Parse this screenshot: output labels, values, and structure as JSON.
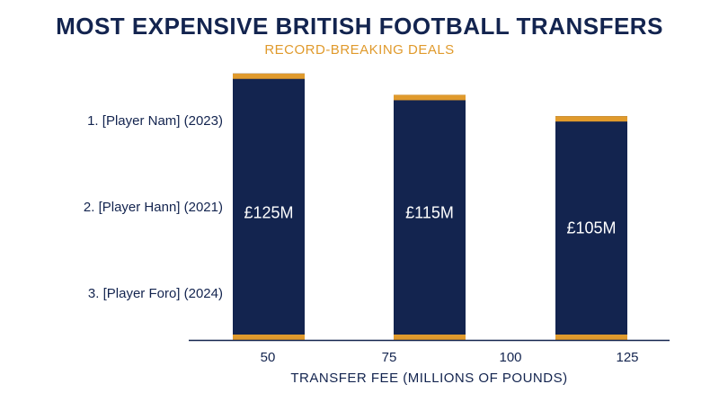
{
  "chart_data": {
    "type": "bar",
    "title": "MOST EXPENSIVE BRITISH FOOTBALL TRANSFERS",
    "subtitle": "RECORD-BREAKING DEALS",
    "xlabel": "TRANSFER FEE (MILLIONS OF POUNDS)",
    "categories": [
      "1. [Player Nam] (2023)",
      "2. [Player Hann] (2021)",
      "3. [Player Foro] (2024)"
    ],
    "values": [
      125,
      115,
      105
    ],
    "data_labels": [
      "£125M",
      "£115M",
      "£105M"
    ],
    "x_ticks": [
      "50",
      "75",
      "100",
      "125"
    ],
    "grid": false,
    "colors": {
      "bar": "#13244f",
      "accent": "#e09a2c",
      "text": "#13244f"
    }
  }
}
